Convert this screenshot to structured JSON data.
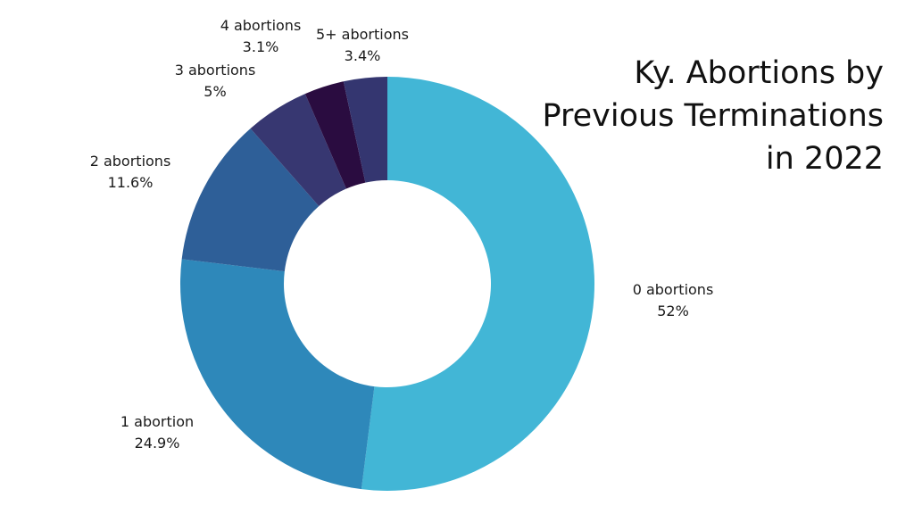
{
  "chart_data": {
    "type": "pie",
    "variant": "donut",
    "title_lines": [
      "Ky. Abortions by",
      "Previous Terminations",
      "in 2022"
    ],
    "categories": [
      "0 abortions",
      "1 abortion",
      "2 abortions",
      "3 abortions",
      "4 abortions",
      "5+ abortions"
    ],
    "values": [
      52,
      24.9,
      11.6,
      5,
      3.1,
      3.4
    ],
    "value_labels": [
      "52%",
      "24.9%",
      "11.6%",
      "5%",
      "3.1%",
      "3.4%"
    ],
    "colors": [
      "#42b6d6",
      "#2e88ba",
      "#2e5f98",
      "#373771",
      "#2a0c40",
      "#343670"
    ]
  }
}
